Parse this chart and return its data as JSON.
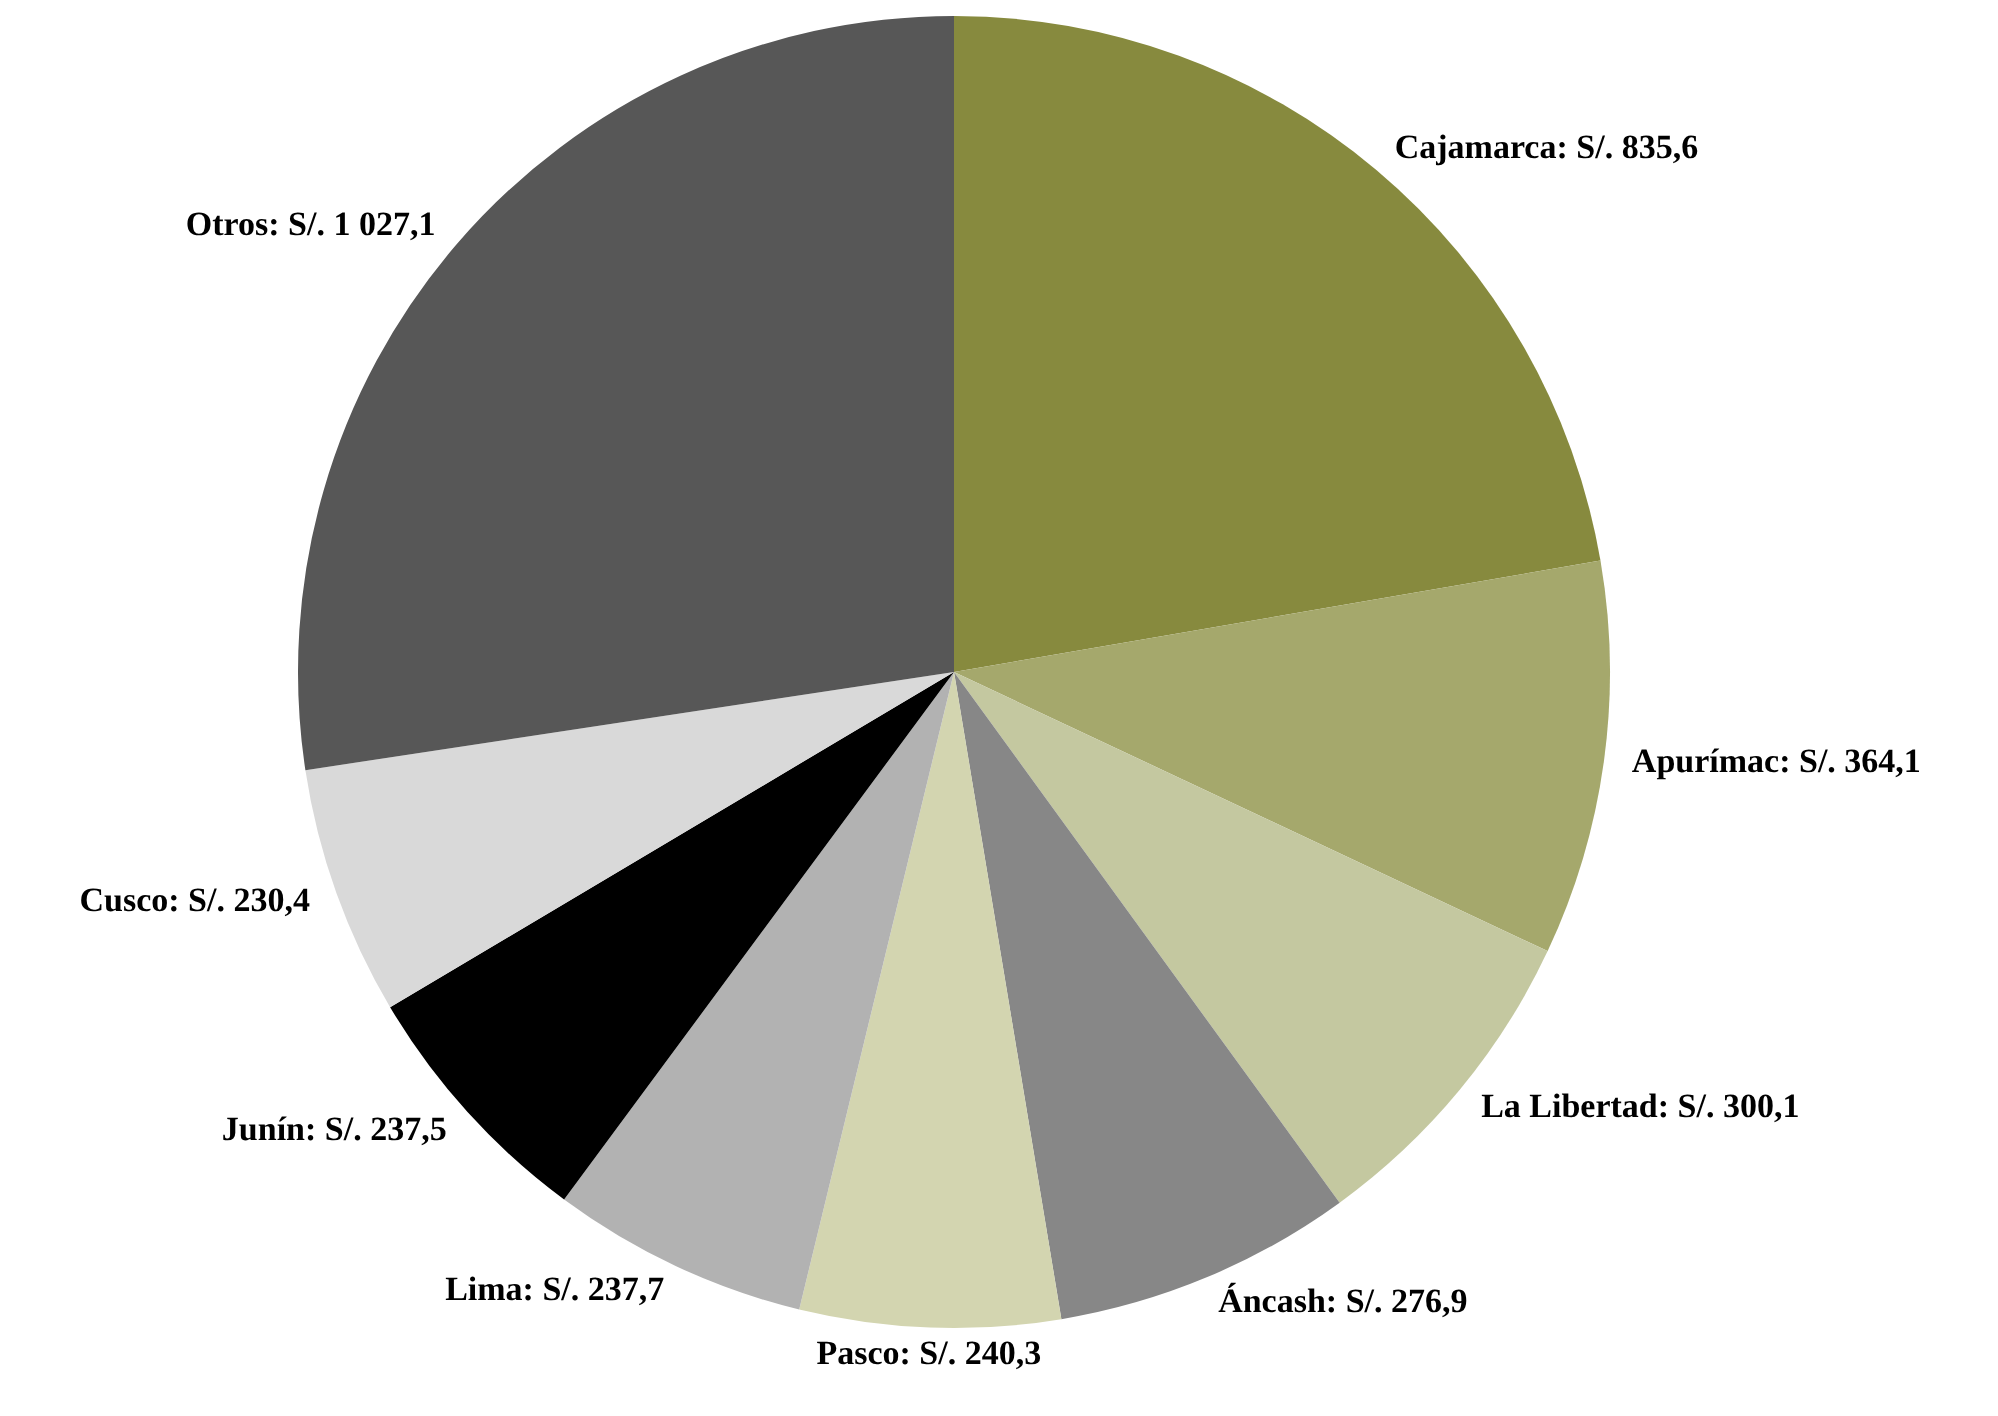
{
  "chart_data": {
    "type": "pie",
    "categories": [
      "Cajamarca",
      "Apurímac",
      "La Libertad",
      "Áncash",
      "Pasco",
      "Lima",
      "Junín",
      "Cusco",
      "Otros"
    ],
    "values": [
      835.6,
      364.1,
      300.1,
      276.9,
      240.3,
      237.7,
      237.5,
      230.4,
      1027.1
    ],
    "value_labels": [
      "S/. 835,6",
      "S/. 364,1",
      "S/. 300,1",
      "S/. 276,9",
      "S/. 240,3",
      "S/. 237,7",
      "S/. 237,5",
      "S/. 230,4",
      "S/. 1 027,1"
    ],
    "colors": [
      "#878a3e",
      "#a5a86c",
      "#c4c8a0",
      "#878787",
      "#d3d5b0",
      "#b2b2b2",
      "#000000",
      "#d9d9d9",
      "#575757"
    ],
    "legend": false
  }
}
